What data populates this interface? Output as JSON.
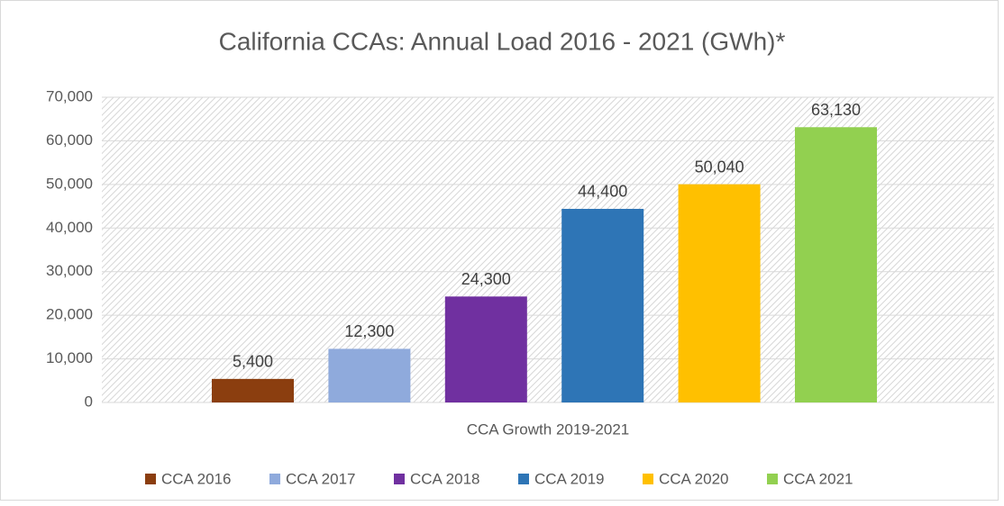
{
  "chart_data": {
    "type": "bar",
    "title": "California CCAs: Annual Load 2016 - 2021 (GWh)*",
    "categories": [
      "CCA Growth 2019-2021"
    ],
    "series": [
      {
        "name": "CCA 2016",
        "color": "#8b3e0f",
        "values": [
          5400
        ],
        "value_labels": [
          "5,400"
        ]
      },
      {
        "name": "CCA 2017",
        "color": "#8faadc",
        "values": [
          12300
        ],
        "value_labels": [
          "12,300"
        ]
      },
      {
        "name": "CCA 2018",
        "color": "#7030a0",
        "values": [
          24300
        ],
        "value_labels": [
          "24,300"
        ]
      },
      {
        "name": "CCA 2019",
        "color": "#2e75b6",
        "values": [
          44400
        ],
        "value_labels": [
          "44,400"
        ]
      },
      {
        "name": "CCA 2020",
        "color": "#ffc000",
        "values": [
          50040
        ],
        "value_labels": [
          "50,040"
        ]
      },
      {
        "name": "CCA 2021",
        "color": "#92d050",
        "values": [
          63130
        ],
        "value_labels": [
          "63,130"
        ]
      }
    ],
    "ylim": [
      0,
      70000
    ],
    "yticks": [
      0,
      {
        "value": 10000,
        "label": "10,000"
      },
      {
        "value": 20000,
        "label": "20,000"
      },
      {
        "value": 30000,
        "label": "30,000"
      },
      {
        "value": 40000,
        "label": "40,000"
      },
      {
        "value": 50000,
        "label": "50,000"
      },
      {
        "value": 60000,
        "label": "60,000"
      },
      {
        "value": 70000,
        "label": "70,000"
      }
    ],
    "grid": true,
    "legend": "bottom"
  }
}
